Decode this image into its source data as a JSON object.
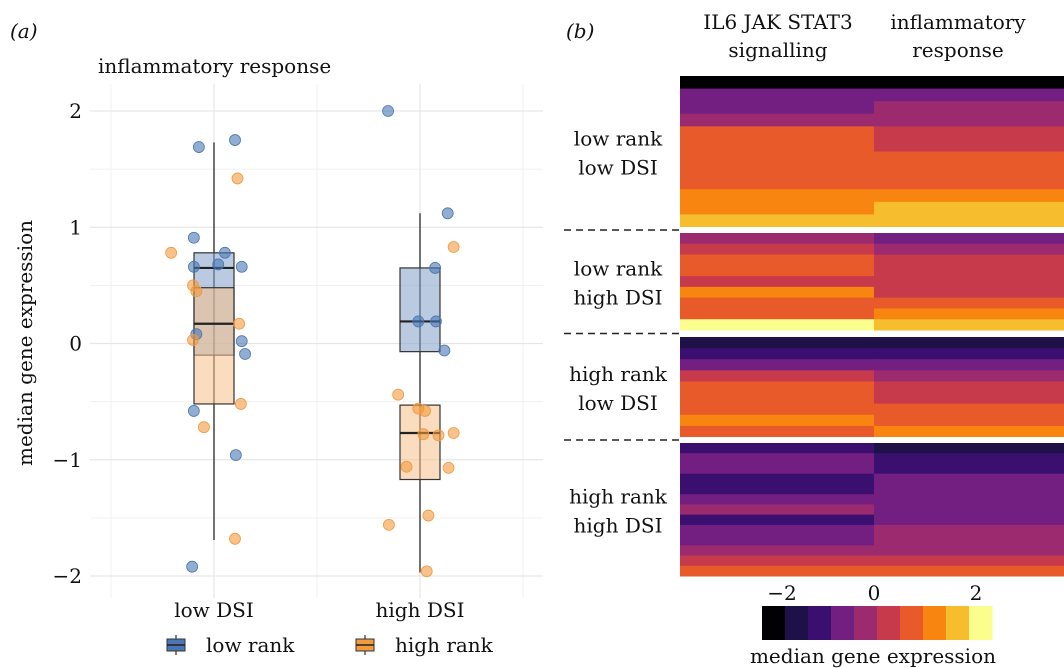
{
  "chart_data": [
    {
      "type": "box",
      "panel_label": "(a)",
      "title": "inflammatory response",
      "xlabel": "",
      "ylabel": "median gene expression",
      "ylim": [
        -2.2,
        2.2
      ],
      "yticks": [
        2,
        1,
        0,
        -1,
        -2
      ],
      "ytick_labels": [
        "2",
        "1",
        "0",
        "−1",
        "−2"
      ],
      "categories": [
        "low DSI",
        "high DSI"
      ],
      "grid": true,
      "legend_position": "bottom",
      "series": [
        {
          "name": "low rank",
          "color": "#4a77b4",
          "fill": "#7f9fc9",
          "boxes": [
            {
              "category": "low DSI",
              "q1": -0.1,
              "median": 0.65,
              "q3": 0.78
            },
            {
              "category": "high DSI",
              "q1": -0.07,
              "median": 0.19,
              "q3": 0.65
            }
          ],
          "points": [
            {
              "category": "low DSI",
              "x": -0.18,
              "y": 1.69
            },
            {
              "category": "low DSI",
              "x": 0.25,
              "y": 1.75
            },
            {
              "category": "low DSI",
              "x": -0.24,
              "y": 0.91
            },
            {
              "category": "low DSI",
              "x": -0.24,
              "y": 0.66
            },
            {
              "category": "low DSI",
              "x": 0.13,
              "y": 0.78
            },
            {
              "category": "low DSI",
              "x": 0.05,
              "y": 0.68
            },
            {
              "category": "low DSI",
              "x": 0.33,
              "y": 0.66
            },
            {
              "category": "low DSI",
              "x": -0.21,
              "y": 0.08
            },
            {
              "category": "low DSI",
              "x": 0.33,
              "y": 0.02
            },
            {
              "category": "low DSI",
              "x": 0.37,
              "y": -0.09
            },
            {
              "category": "low DSI",
              "x": -0.24,
              "y": -0.58
            },
            {
              "category": "low DSI",
              "x": 0.26,
              "y": -0.96
            },
            {
              "category": "low DSI",
              "x": -0.26,
              "y": -1.92
            },
            {
              "category": "high DSI",
              "x": -0.38,
              "y": 2.0
            },
            {
              "category": "high DSI",
              "x": 0.33,
              "y": 1.12
            },
            {
              "category": "high DSI",
              "x": 0.18,
              "y": 0.65
            },
            {
              "category": "high DSI",
              "x": -0.02,
              "y": 0.19
            },
            {
              "category": "high DSI",
              "x": 0.19,
              "y": 0.19
            },
            {
              "category": "high DSI",
              "x": 0.29,
              "y": -0.06
            }
          ]
        },
        {
          "name": "high rank",
          "color": "#f19a3e",
          "fill": "#f7c089",
          "boxes": [
            {
              "category": "low DSI",
              "q1": -0.52,
              "median": 0.17,
              "q3": 0.48
            },
            {
              "category": "high DSI",
              "q1": -1.17,
              "median": -0.77,
              "q3": -0.53
            }
          ],
          "points": [
            {
              "category": "low DSI",
              "x": 0.28,
              "y": 1.42
            },
            {
              "category": "low DSI",
              "x": -0.51,
              "y": 0.78
            },
            {
              "category": "low DSI",
              "x": -0.25,
              "y": 0.5
            },
            {
              "category": "low DSI",
              "x": -0.21,
              "y": 0.45
            },
            {
              "category": "low DSI",
              "x": 0.3,
              "y": 0.17
            },
            {
              "category": "low DSI",
              "x": -0.25,
              "y": 0.03
            },
            {
              "category": "low DSI",
              "x": 0.32,
              "y": -0.52
            },
            {
              "category": "low DSI",
              "x": -0.12,
              "y": -0.72
            },
            {
              "category": "low DSI",
              "x": 0.25,
              "y": -1.68
            },
            {
              "category": "high DSI",
              "x": 0.4,
              "y": 0.83
            },
            {
              "category": "high DSI",
              "x": -0.26,
              "y": -0.44
            },
            {
              "category": "high DSI",
              "x": -0.02,
              "y": -0.56
            },
            {
              "category": "high DSI",
              "x": 0.06,
              "y": -0.58
            },
            {
              "category": "high DSI",
              "x": 0.04,
              "y": -0.78
            },
            {
              "category": "high DSI",
              "x": 0.22,
              "y": -0.79
            },
            {
              "category": "high DSI",
              "x": 0.4,
              "y": -0.77
            },
            {
              "category": "high DSI",
              "x": 0.34,
              "y": -1.07
            },
            {
              "category": "high DSI",
              "x": -0.16,
              "y": -1.06
            },
            {
              "category": "high DSI",
              "x": 0.1,
              "y": -1.48
            },
            {
              "category": "high DSI",
              "x": -0.37,
              "y": -1.56
            },
            {
              "category": "high DSI",
              "x": 0.08,
              "y": -1.96
            }
          ]
        }
      ],
      "whiskers": [
        {
          "category": "low DSI",
          "low": -1.69,
          "high": 1.73
        },
        {
          "category": "high DSI",
          "low": -1.97,
          "high": 1.12
        }
      ],
      "legend": [
        {
          "label": "low rank",
          "series": 0
        },
        {
          "label": "high rank",
          "series": 1
        }
      ]
    },
    {
      "type": "heatmap",
      "panel_label": "(b)",
      "columns": [
        "IL6 JAK STAT3\nsignalling",
        "inflammatory\nresponse"
      ],
      "column_lines": [
        [
          "IL6 JAK STAT3",
          "signalling"
        ],
        [
          "inflammatory",
          "response"
        ]
      ],
      "x_ticks": [
        -2,
        0,
        2
      ],
      "x_tick_labels": [
        "−2",
        "0",
        "2"
      ],
      "groups": [
        {
          "label_lines": [
            "low rank",
            "low DSI"
          ],
          "rows": [
            [
              -2.8,
              -2.9
            ],
            [
              -1.2,
              -0.8
            ],
            [
              -0.8,
              -0.5
            ],
            [
              -0.2,
              -0.1
            ],
            [
              0.7,
              0.1
            ],
            [
              0.7,
              0.5
            ],
            [
              0.8,
              0.9
            ],
            [
              1.0,
              1.1
            ],
            [
              1.2,
              1.3
            ],
            [
              1.5,
              1.6
            ],
            [
              1.4,
              2.1
            ],
            [
              2.0,
              2.4
            ]
          ]
        },
        {
          "label_lines": [
            "low rank",
            "high DSI"
          ],
          "rows": [
            [
              -0.6,
              -1.0
            ],
            [
              0.6,
              -0.6
            ],
            [
              0.8,
              0.0
            ],
            [
              1.0,
              0.5
            ],
            [
              0.6,
              0.4
            ],
            [
              1.4,
              0.6
            ],
            [
              1.2,
              1.0
            ],
            [
              1.0,
              1.4
            ],
            [
              2.8,
              2.2
            ]
          ]
        },
        {
          "label_lines": [
            "high rank",
            "low DSI"
          ],
          "rows": [
            [
              -2.6,
              -2.0
            ],
            [
              -1.4,
              -1.4
            ],
            [
              -0.9,
              -1.1
            ],
            [
              0.0,
              -0.4
            ],
            [
              0.8,
              0.4
            ],
            [
              1.0,
              0.6
            ],
            [
              0.9,
              0.9
            ],
            [
              1.5,
              1.3
            ],
            [
              1.2,
              1.6
            ]
          ]
        },
        {
          "label_lines": [
            "high rank",
            "high DSI"
          ],
          "rows": [
            [
              -1.5,
              -2.3
            ],
            [
              -1.2,
              -1.8
            ],
            [
              -1.0,
              -1.6
            ],
            [
              -1.4,
              -1.2
            ],
            [
              -1.8,
              -1.0
            ],
            [
              -0.9,
              -1.2
            ],
            [
              -0.6,
              -0.8
            ],
            [
              -1.6,
              -0.9
            ],
            [
              -0.7,
              -0.6
            ],
            [
              -0.9,
              -0.5
            ],
            [
              -0.1,
              -0.2
            ],
            [
              0.6,
              0.3
            ],
            [
              1.1,
              1.0
            ]
          ]
        }
      ],
      "colorbar": {
        "label": "median gene expression",
        "range": [
          -3.3,
          3.3
        ],
        "colors": [
          "#000004",
          "#1d1147",
          "#3b0f70",
          "#721f81",
          "#9c2a6f",
          "#c63a4b",
          "#e85a2a",
          "#f8850f",
          "#f6bd2f",
          "#fbfd8c"
        ]
      }
    }
  ]
}
